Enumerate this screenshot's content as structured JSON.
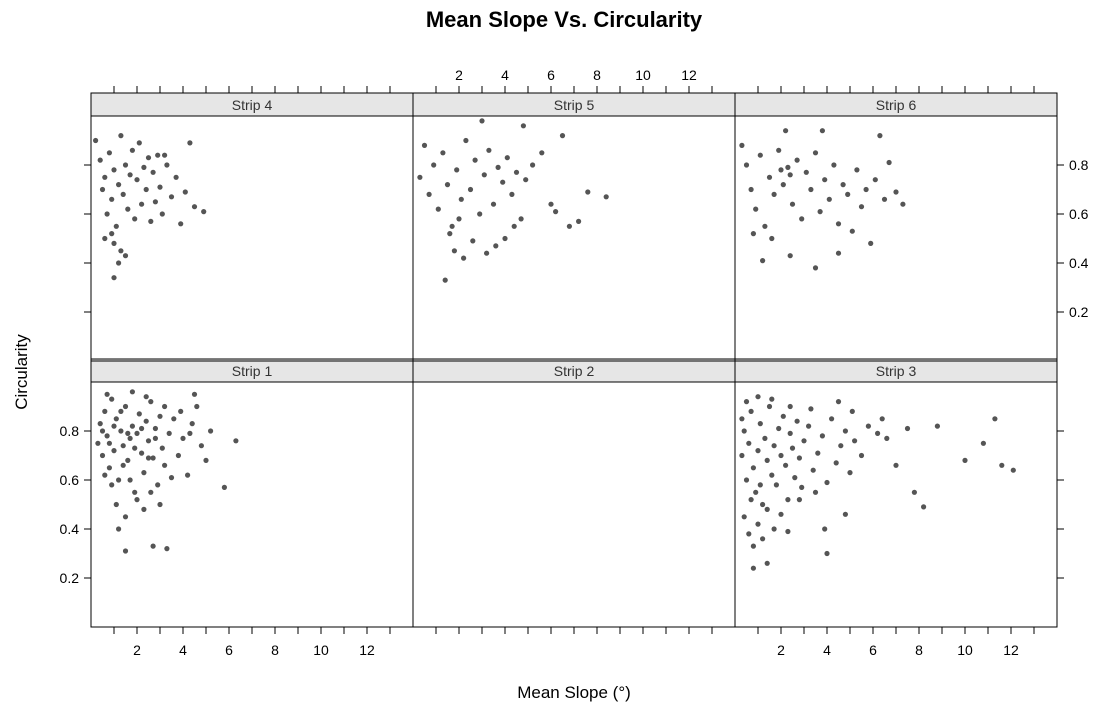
{
  "chart_data": {
    "type": "scatter",
    "title": "Mean Slope Vs. Circularity",
    "xlabel": "Mean Slope (°)",
    "ylabel": "Circularity",
    "xlim": [
      0,
      14
    ],
    "ylim": [
      0,
      1
    ],
    "x_ticks": [
      "2",
      "4",
      "6",
      "8",
      "10",
      "12"
    ],
    "y_ticks": [
      "0.2",
      "0.4",
      "0.6",
      "0.8"
    ],
    "x_tick_values": [
      2,
      4,
      6,
      8,
      10,
      12
    ],
    "y_tick_values": [
      0.2,
      0.4,
      0.6,
      0.8
    ],
    "layout": "3 columns x 2 rows (lattice)",
    "point_color": "#555555",
    "strip_bg": "#e6e6e6",
    "panels": [
      {
        "name": "Strip 1",
        "points": [
          [
            0.3,
            0.75
          ],
          [
            0.4,
            0.83
          ],
          [
            0.5,
            0.7
          ],
          [
            0.6,
            0.88
          ],
          [
            0.7,
            0.78
          ],
          [
            0.8,
            0.65
          ],
          [
            0.9,
            0.93
          ],
          [
            1.0,
            0.72
          ],
          [
            1.1,
            0.85
          ],
          [
            1.2,
            0.6
          ],
          [
            1.3,
            0.8
          ],
          [
            1.4,
            0.74
          ],
          [
            1.5,
            0.9
          ],
          [
            1.6,
            0.68
          ],
          [
            1.7,
            0.77
          ],
          [
            1.8,
            0.82
          ],
          [
            1.9,
            0.55
          ],
          [
            2.0,
            0.79
          ],
          [
            2.1,
            0.87
          ],
          [
            2.2,
            0.71
          ],
          [
            2.3,
            0.63
          ],
          [
            2.4,
            0.84
          ],
          [
            2.5,
            0.76
          ],
          [
            2.6,
            0.92
          ],
          [
            2.7,
            0.69
          ],
          [
            2.8,
            0.81
          ],
          [
            2.9,
            0.58
          ],
          [
            3.0,
            0.86
          ],
          [
            3.1,
            0.73
          ],
          [
            3.2,
            0.66
          ],
          [
            3.4,
            0.79
          ],
          [
            3.6,
            0.85
          ],
          [
            3.8,
            0.7
          ],
          [
            4.0,
            0.77
          ],
          [
            4.2,
            0.62
          ],
          [
            4.4,
            0.83
          ],
          [
            4.6,
            0.9
          ],
          [
            4.8,
            0.74
          ],
          [
            5.0,
            0.68
          ],
          [
            5.2,
            0.8
          ],
          [
            6.3,
            0.76
          ],
          [
            5.8,
            0.57
          ],
          [
            1.5,
            0.45
          ],
          [
            1.2,
            0.4
          ],
          [
            1.5,
            0.31
          ],
          [
            2.7,
            0.33
          ],
          [
            3.3,
            0.32
          ],
          [
            0.6,
            0.62
          ],
          [
            0.9,
            0.58
          ],
          [
            1.1,
            0.5
          ],
          [
            1.4,
            0.66
          ],
          [
            1.7,
            0.6
          ],
          [
            2.0,
            0.52
          ],
          [
            2.3,
            0.48
          ],
          [
            2.6,
            0.55
          ],
          [
            3.0,
            0.5
          ],
          [
            3.5,
            0.61
          ],
          [
            0.5,
            0.8
          ],
          [
            0.8,
            0.75
          ],
          [
            1.0,
            0.82
          ],
          [
            1.3,
            0.88
          ],
          [
            1.6,
            0.79
          ],
          [
            1.9,
            0.73
          ],
          [
            2.2,
            0.81
          ],
          [
            2.5,
            0.69
          ],
          [
            2.8,
            0.77
          ],
          [
            3.2,
            0.9
          ],
          [
            3.9,
            0.88
          ],
          [
            4.3,
            0.79
          ],
          [
            0.7,
            0.95
          ],
          [
            1.8,
            0.96
          ],
          [
            2.4,
            0.94
          ],
          [
            4.5,
            0.95
          ]
        ]
      },
      {
        "name": "Strip 2",
        "points": []
      },
      {
        "name": "Strip 3",
        "points": [
          [
            0.3,
            0.7
          ],
          [
            0.4,
            0.8
          ],
          [
            0.5,
            0.6
          ],
          [
            0.6,
            0.75
          ],
          [
            0.7,
            0.88
          ],
          [
            0.8,
            0.65
          ],
          [
            0.9,
            0.55
          ],
          [
            1.0,
            0.72
          ],
          [
            1.1,
            0.83
          ],
          [
            1.2,
            0.5
          ],
          [
            1.3,
            0.77
          ],
          [
            1.4,
            0.68
          ],
          [
            1.5,
            0.9
          ],
          [
            1.6,
            0.62
          ],
          [
            1.7,
            0.74
          ],
          [
            1.8,
            0.58
          ],
          [
            1.9,
            0.81
          ],
          [
            2.0,
            0.7
          ],
          [
            2.1,
            0.86
          ],
          [
            2.2,
            0.66
          ],
          [
            2.3,
            0.52
          ],
          [
            2.4,
            0.79
          ],
          [
            2.5,
            0.73
          ],
          [
            2.6,
            0.61
          ],
          [
            2.7,
            0.84
          ],
          [
            2.8,
            0.69
          ],
          [
            2.9,
            0.57
          ],
          [
            3.0,
            0.76
          ],
          [
            3.2,
            0.82
          ],
          [
            3.4,
            0.64
          ],
          [
            3.6,
            0.71
          ],
          [
            3.8,
            0.78
          ],
          [
            4.0,
            0.59
          ],
          [
            4.2,
            0.85
          ],
          [
            4.4,
            0.67
          ],
          [
            4.6,
            0.74
          ],
          [
            4.8,
            0.8
          ],
          [
            5.0,
            0.63
          ],
          [
            5.2,
            0.76
          ],
          [
            5.5,
            0.7
          ],
          [
            5.8,
            0.82
          ],
          [
            6.2,
            0.79
          ],
          [
            6.6,
            0.77
          ],
          [
            7.0,
            0.66
          ],
          [
            7.5,
            0.81
          ],
          [
            7.8,
            0.55
          ],
          [
            8.2,
            0.49
          ],
          [
            8.8,
            0.82
          ],
          [
            10.0,
            0.68
          ],
          [
            10.8,
            0.75
          ],
          [
            11.3,
            0.85
          ],
          [
            11.6,
            0.66
          ],
          [
            12.1,
            0.64
          ],
          [
            0.4,
            0.45
          ],
          [
            0.6,
            0.38
          ],
          [
            0.8,
            0.33
          ],
          [
            1.0,
            0.42
          ],
          [
            1.2,
            0.36
          ],
          [
            1.4,
            0.48
          ],
          [
            1.7,
            0.4
          ],
          [
            2.0,
            0.46
          ],
          [
            2.3,
            0.39
          ],
          [
            0.8,
            0.24
          ],
          [
            1.4,
            0.26
          ],
          [
            4.0,
            0.3
          ],
          [
            3.9,
            0.4
          ],
          [
            0.5,
            0.92
          ],
          [
            1.0,
            0.94
          ],
          [
            1.6,
            0.93
          ],
          [
            2.4,
            0.9
          ],
          [
            3.3,
            0.89
          ],
          [
            4.5,
            0.92
          ],
          [
            5.1,
            0.88
          ],
          [
            6.4,
            0.85
          ],
          [
            0.3,
            0.85
          ],
          [
            0.7,
            0.52
          ],
          [
            1.1,
            0.58
          ],
          [
            2.8,
            0.52
          ],
          [
            3.5,
            0.55
          ],
          [
            4.8,
            0.46
          ]
        ]
      },
      {
        "name": "Strip 4",
        "points": [
          [
            0.2,
            0.9
          ],
          [
            0.4,
            0.82
          ],
          [
            0.5,
            0.7
          ],
          [
            0.6,
            0.75
          ],
          [
            0.7,
            0.6
          ],
          [
            0.8,
            0.85
          ],
          [
            0.9,
            0.66
          ],
          [
            1.0,
            0.78
          ],
          [
            1.1,
            0.55
          ],
          [
            1.2,
            0.72
          ],
          [
            1.3,
            0.92
          ],
          [
            1.4,
            0.68
          ],
          [
            1.5,
            0.8
          ],
          [
            1.6,
            0.62
          ],
          [
            1.7,
            0.76
          ],
          [
            1.8,
            0.86
          ],
          [
            1.9,
            0.58
          ],
          [
            2.0,
            0.74
          ],
          [
            2.1,
            0.89
          ],
          [
            2.2,
            0.64
          ],
          [
            2.3,
            0.79
          ],
          [
            2.4,
            0.7
          ],
          [
            2.5,
            0.83
          ],
          [
            2.6,
            0.57
          ],
          [
            2.7,
            0.77
          ],
          [
            2.8,
            0.65
          ],
          [
            2.9,
            0.84
          ],
          [
            3.0,
            0.71
          ],
          [
            3.1,
            0.6
          ],
          [
            3.3,
            0.8
          ],
          [
            3.5,
            0.67
          ],
          [
            3.7,
            0.75
          ],
          [
            3.9,
            0.56
          ],
          [
            4.1,
            0.69
          ],
          [
            4.3,
            0.89
          ],
          [
            4.5,
            0.63
          ],
          [
            4.9,
            0.61
          ],
          [
            3.2,
            0.84
          ],
          [
            1.0,
            0.48
          ],
          [
            1.3,
            0.45
          ],
          [
            1.2,
            0.4
          ],
          [
            1.5,
            0.43
          ],
          [
            1.0,
            0.34
          ],
          [
            0.6,
            0.5
          ],
          [
            0.9,
            0.52
          ]
        ]
      },
      {
        "name": "Strip 5",
        "points": [
          [
            0.3,
            0.75
          ],
          [
            0.5,
            0.88
          ],
          [
            0.7,
            0.68
          ],
          [
            0.9,
            0.8
          ],
          [
            1.1,
            0.62
          ],
          [
            1.3,
            0.85
          ],
          [
            1.5,
            0.72
          ],
          [
            1.7,
            0.55
          ],
          [
            1.9,
            0.78
          ],
          [
            2.1,
            0.66
          ],
          [
            2.3,
            0.9
          ],
          [
            2.5,
            0.7
          ],
          [
            2.7,
            0.82
          ],
          [
            2.9,
            0.6
          ],
          [
            3.1,
            0.76
          ],
          [
            3.3,
            0.86
          ],
          [
            3.5,
            0.64
          ],
          [
            3.7,
            0.79
          ],
          [
            3.9,
            0.73
          ],
          [
            4.1,
            0.83
          ],
          [
            4.3,
            0.68
          ],
          [
            4.5,
            0.77
          ],
          [
            4.7,
            0.58
          ],
          [
            4.9,
            0.74
          ],
          [
            5.2,
            0.8
          ],
          [
            5.6,
            0.85
          ],
          [
            6.0,
            0.64
          ],
          [
            6.2,
            0.61
          ],
          [
            6.5,
            0.92
          ],
          [
            6.8,
            0.55
          ],
          [
            7.2,
            0.57
          ],
          [
            7.6,
            0.69
          ],
          [
            8.4,
            0.67
          ],
          [
            3.0,
            0.98
          ],
          [
            4.8,
            0.96
          ],
          [
            1.4,
            0.33
          ],
          [
            1.8,
            0.45
          ],
          [
            2.2,
            0.42
          ],
          [
            2.6,
            0.49
          ],
          [
            3.2,
            0.44
          ],
          [
            3.6,
            0.47
          ],
          [
            4.0,
            0.5
          ],
          [
            4.4,
            0.55
          ],
          [
            1.6,
            0.52
          ],
          [
            2.0,
            0.58
          ]
        ]
      },
      {
        "name": "Strip 6",
        "points": [
          [
            0.3,
            0.88
          ],
          [
            0.5,
            0.8
          ],
          [
            0.7,
            0.7
          ],
          [
            0.9,
            0.62
          ],
          [
            1.1,
            0.84
          ],
          [
            1.3,
            0.55
          ],
          [
            1.5,
            0.75
          ],
          [
            1.7,
            0.68
          ],
          [
            1.9,
            0.86
          ],
          [
            2.1,
            0.72
          ],
          [
            2.3,
            0.79
          ],
          [
            2.5,
            0.64
          ],
          [
            2.7,
            0.82
          ],
          [
            2.9,
            0.58
          ],
          [
            3.1,
            0.77
          ],
          [
            3.3,
            0.7
          ],
          [
            3.5,
            0.85
          ],
          [
            3.7,
            0.61
          ],
          [
            3.9,
            0.74
          ],
          [
            4.1,
            0.66
          ],
          [
            4.3,
            0.8
          ],
          [
            4.5,
            0.56
          ],
          [
            4.7,
            0.72
          ],
          [
            4.9,
            0.68
          ],
          [
            5.1,
            0.53
          ],
          [
            5.3,
            0.78
          ],
          [
            5.5,
            0.63
          ],
          [
            5.7,
            0.7
          ],
          [
            5.9,
            0.48
          ],
          [
            6.1,
            0.74
          ],
          [
            6.3,
            0.92
          ],
          [
            6.5,
            0.66
          ],
          [
            6.7,
            0.81
          ],
          [
            7.0,
            0.69
          ],
          [
            7.3,
            0.64
          ],
          [
            2.2,
            0.94
          ],
          [
            3.8,
            0.94
          ],
          [
            1.2,
            0.41
          ],
          [
            2.4,
            0.43
          ],
          [
            3.5,
            0.38
          ],
          [
            4.5,
            0.44
          ],
          [
            1.6,
            0.5
          ],
          [
            0.8,
            0.52
          ],
          [
            2.0,
            0.78
          ],
          [
            2.4,
            0.76
          ]
        ]
      }
    ]
  }
}
